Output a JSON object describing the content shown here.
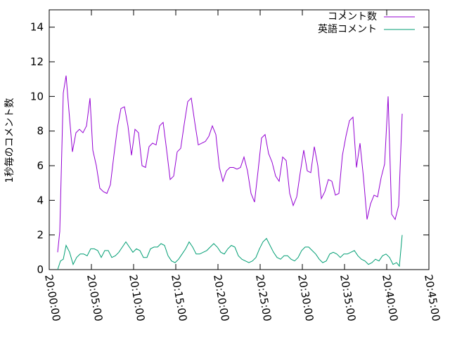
{
  "chart_data": {
    "type": "line",
    "title": "",
    "xlabel": "",
    "ylabel": "1秒毎のコメント数",
    "xlim": [
      "20:00:00",
      "20:45:00"
    ],
    "ylim": [
      0,
      15
    ],
    "x_ticks": [
      "20:00:00",
      "20:05:00",
      "20:10:00",
      "20:15:00",
      "20:20:00",
      "20:25:00",
      "20:30:00",
      "20:35:00",
      "20:40:00",
      "20:45:00"
    ],
    "y_ticks": [
      0,
      2,
      4,
      6,
      8,
      10,
      12,
      14
    ],
    "grid": false,
    "legend_position": "top-right",
    "series": [
      {
        "name": "コメント数",
        "color": "#9400d3",
        "points": [
          [
            "20:01:00",
            1.0
          ],
          [
            "20:01:15",
            2.2
          ],
          [
            "20:01:40",
            10.2
          ],
          [
            "20:02:00",
            11.2
          ],
          [
            "20:02:20",
            9.2
          ],
          [
            "20:02:45",
            6.8
          ],
          [
            "20:03:10",
            7.9
          ],
          [
            "20:03:35",
            8.1
          ],
          [
            "20:04:00",
            7.9
          ],
          [
            "20:04:25",
            8.3
          ],
          [
            "20:04:50",
            9.9
          ],
          [
            "20:05:10",
            6.9
          ],
          [
            "20:05:35",
            6.0
          ],
          [
            "20:06:00",
            4.7
          ],
          [
            "20:06:25",
            4.5
          ],
          [
            "20:06:50",
            4.4
          ],
          [
            "20:07:15",
            4.9
          ],
          [
            "20:07:40",
            6.6
          ],
          [
            "20:08:05",
            8.2
          ],
          [
            "20:08:30",
            9.3
          ],
          [
            "20:08:55",
            9.4
          ],
          [
            "20:09:20",
            8.3
          ],
          [
            "20:09:45",
            6.6
          ],
          [
            "20:10:10",
            8.1
          ],
          [
            "20:10:35",
            7.9
          ],
          [
            "20:11:00",
            6.0
          ],
          [
            "20:11:25",
            5.9
          ],
          [
            "20:11:50",
            7.1
          ],
          [
            "20:12:15",
            7.3
          ],
          [
            "20:12:40",
            7.2
          ],
          [
            "20:13:05",
            8.3
          ],
          [
            "20:13:30",
            8.5
          ],
          [
            "20:13:55",
            6.9
          ],
          [
            "20:14:20",
            5.2
          ],
          [
            "20:14:45",
            5.4
          ],
          [
            "20:15:10",
            6.8
          ],
          [
            "20:15:35",
            7.0
          ],
          [
            "20:16:00",
            8.4
          ],
          [
            "20:16:25",
            9.7
          ],
          [
            "20:16:50",
            9.9
          ],
          [
            "20:17:15",
            8.5
          ],
          [
            "20:17:40",
            7.2
          ],
          [
            "20:18:05",
            7.3
          ],
          [
            "20:18:30",
            7.4
          ],
          [
            "20:18:55",
            7.7
          ],
          [
            "20:19:20",
            8.3
          ],
          [
            "20:19:45",
            7.8
          ],
          [
            "20:20:10",
            5.9
          ],
          [
            "20:20:35",
            5.1
          ],
          [
            "20:21:00",
            5.7
          ],
          [
            "20:21:25",
            5.9
          ],
          [
            "20:21:50",
            5.9
          ],
          [
            "20:22:15",
            5.8
          ],
          [
            "20:22:40",
            5.9
          ],
          [
            "20:23:05",
            6.5
          ],
          [
            "20:23:30",
            5.7
          ],
          [
            "20:23:55",
            4.4
          ],
          [
            "20:24:20",
            3.9
          ],
          [
            "20:24:45",
            5.7
          ],
          [
            "20:25:10",
            7.6
          ],
          [
            "20:25:35",
            7.8
          ],
          [
            "20:26:00",
            6.7
          ],
          [
            "20:26:25",
            6.2
          ],
          [
            "20:26:50",
            5.4
          ],
          [
            "20:27:15",
            5.1
          ],
          [
            "20:27:40",
            6.5
          ],
          [
            "20:28:05",
            6.3
          ],
          [
            "20:28:30",
            4.4
          ],
          [
            "20:28:55",
            3.7
          ],
          [
            "20:29:20",
            4.2
          ],
          [
            "20:29:45",
            5.6
          ],
          [
            "20:30:10",
            6.9
          ],
          [
            "20:30:35",
            5.7
          ],
          [
            "20:31:00",
            5.6
          ],
          [
            "20:31:25",
            7.1
          ],
          [
            "20:31:50",
            6.0
          ],
          [
            "20:32:15",
            4.1
          ],
          [
            "20:32:40",
            4.5
          ],
          [
            "20:33:05",
            5.2
          ],
          [
            "20:33:30",
            5.1
          ],
          [
            "20:33:55",
            4.3
          ],
          [
            "20:34:20",
            4.4
          ],
          [
            "20:34:45",
            6.6
          ],
          [
            "20:35:10",
            7.7
          ],
          [
            "20:35:35",
            8.6
          ],
          [
            "20:36:00",
            8.8
          ],
          [
            "20:36:25",
            5.9
          ],
          [
            "20:36:50",
            7.3
          ],
          [
            "20:37:15",
            5.3
          ],
          [
            "20:37:40",
            2.9
          ],
          [
            "20:38:05",
            3.8
          ],
          [
            "20:38:30",
            4.3
          ],
          [
            "20:38:55",
            4.2
          ],
          [
            "20:39:20",
            5.3
          ],
          [
            "20:39:45",
            6.1
          ],
          [
            "20:40:10",
            10.0
          ],
          [
            "20:40:35",
            3.2
          ],
          [
            "20:41:00",
            2.9
          ],
          [
            "20:41:25",
            3.7
          ],
          [
            "20:41:50",
            9.0
          ]
        ]
      },
      {
        "name": "英語コメント",
        "color": "#009e73",
        "points": [
          [
            "20:01:00",
            0.0
          ],
          [
            "20:01:20",
            0.5
          ],
          [
            "20:01:40",
            0.6
          ],
          [
            "20:02:00",
            1.4
          ],
          [
            "20:02:25",
            1.0
          ],
          [
            "20:02:50",
            0.3
          ],
          [
            "20:03:15",
            0.7
          ],
          [
            "20:03:40",
            0.9
          ],
          [
            "20:04:05",
            0.9
          ],
          [
            "20:04:30",
            0.8
          ],
          [
            "20:04:55",
            1.2
          ],
          [
            "20:05:20",
            1.2
          ],
          [
            "20:05:45",
            1.1
          ],
          [
            "20:06:10",
            0.7
          ],
          [
            "20:06:35",
            1.1
          ],
          [
            "20:07:00",
            1.1
          ],
          [
            "20:07:25",
            0.7
          ],
          [
            "20:07:50",
            0.8
          ],
          [
            "20:08:15",
            1.0
          ],
          [
            "20:08:40",
            1.3
          ],
          [
            "20:09:05",
            1.6
          ],
          [
            "20:09:30",
            1.3
          ],
          [
            "20:09:55",
            1.0
          ],
          [
            "20:10:20",
            1.2
          ],
          [
            "20:10:45",
            1.1
          ],
          [
            "20:11:10",
            0.7
          ],
          [
            "20:11:35",
            0.7
          ],
          [
            "20:12:00",
            1.2
          ],
          [
            "20:12:25",
            1.3
          ],
          [
            "20:12:50",
            1.3
          ],
          [
            "20:13:15",
            1.5
          ],
          [
            "20:13:40",
            1.4
          ],
          [
            "20:14:05",
            0.8
          ],
          [
            "20:14:30",
            0.5
          ],
          [
            "20:14:55",
            0.4
          ],
          [
            "20:15:20",
            0.6
          ],
          [
            "20:15:45",
            0.9
          ],
          [
            "20:16:10",
            1.2
          ],
          [
            "20:16:35",
            1.6
          ],
          [
            "20:17:00",
            1.3
          ],
          [
            "20:17:25",
            0.9
          ],
          [
            "20:17:50",
            0.9
          ],
          [
            "20:18:15",
            1.0
          ],
          [
            "20:18:40",
            1.1
          ],
          [
            "20:19:05",
            1.3
          ],
          [
            "20:19:30",
            1.5
          ],
          [
            "20:19:55",
            1.3
          ],
          [
            "20:20:20",
            1.0
          ],
          [
            "20:20:45",
            0.9
          ],
          [
            "20:21:10",
            1.2
          ],
          [
            "20:21:35",
            1.4
          ],
          [
            "20:22:00",
            1.3
          ],
          [
            "20:22:25",
            0.8
          ],
          [
            "20:22:50",
            0.6
          ],
          [
            "20:23:15",
            0.5
          ],
          [
            "20:23:40",
            0.4
          ],
          [
            "20:24:05",
            0.5
          ],
          [
            "20:24:30",
            0.7
          ],
          [
            "20:24:55",
            1.2
          ],
          [
            "20:25:20",
            1.6
          ],
          [
            "20:25:45",
            1.8
          ],
          [
            "20:26:10",
            1.4
          ],
          [
            "20:26:35",
            1.0
          ],
          [
            "20:27:00",
            0.7
          ],
          [
            "20:27:25",
            0.6
          ],
          [
            "20:27:50",
            0.8
          ],
          [
            "20:28:15",
            0.8
          ],
          [
            "20:28:40",
            0.6
          ],
          [
            "20:29:05",
            0.5
          ],
          [
            "20:29:30",
            0.7
          ],
          [
            "20:29:55",
            1.1
          ],
          [
            "20:30:20",
            1.3
          ],
          [
            "20:30:45",
            1.3
          ],
          [
            "20:31:10",
            1.1
          ],
          [
            "20:31:35",
            0.9
          ],
          [
            "20:32:00",
            0.6
          ],
          [
            "20:32:25",
            0.4
          ],
          [
            "20:32:50",
            0.5
          ],
          [
            "20:33:15",
            0.9
          ],
          [
            "20:33:40",
            1.0
          ],
          [
            "20:34:05",
            0.9
          ],
          [
            "20:34:30",
            0.7
          ],
          [
            "20:34:55",
            0.9
          ],
          [
            "20:35:20",
            0.9
          ],
          [
            "20:35:45",
            1.0
          ],
          [
            "20:36:10",
            1.1
          ],
          [
            "20:36:35",
            0.8
          ],
          [
            "20:37:00",
            0.6
          ],
          [
            "20:37:25",
            0.5
          ],
          [
            "20:37:50",
            0.3
          ],
          [
            "20:38:15",
            0.4
          ],
          [
            "20:38:40",
            0.6
          ],
          [
            "20:39:05",
            0.5
          ],
          [
            "20:39:30",
            0.8
          ],
          [
            "20:39:55",
            0.9
          ],
          [
            "20:40:20",
            0.7
          ],
          [
            "20:40:45",
            0.3
          ],
          [
            "20:41:10",
            0.4
          ],
          [
            "20:41:30",
            0.2
          ],
          [
            "20:41:50",
            2.0
          ]
        ]
      }
    ]
  }
}
